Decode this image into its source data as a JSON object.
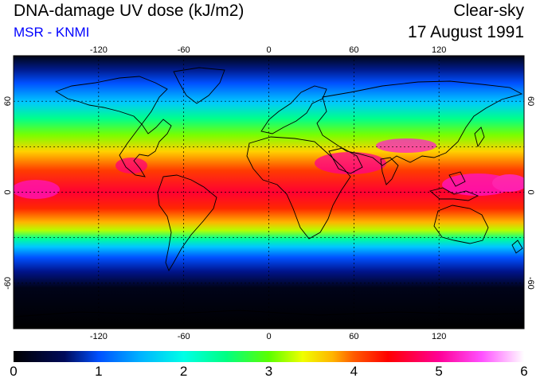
{
  "header": {
    "title": "DNA-damage UV dose (kJ/m2)",
    "subtitle": "MSR - KNMI",
    "sky": "Clear-sky",
    "date": "17 August 1991"
  },
  "colors": {
    "title": "#000000",
    "subtitle": "#0000ff"
  },
  "map": {
    "projection": "equirectangular",
    "lon_range": [
      -180,
      180
    ],
    "lat_range": [
      -90,
      90
    ],
    "grid": true,
    "grid_style": "dashed",
    "lon_ticks": [
      -120,
      -60,
      0,
      60,
      120
    ],
    "lat_ticks": [
      -60,
      0,
      60
    ],
    "lon_tick_labels": [
      "-120",
      "-60",
      "0",
      "60",
      "120"
    ],
    "lat_tick_labels": [
      "-60",
      "0",
      "60"
    ],
    "coastlines": true
  },
  "colorbar": {
    "min": 0,
    "max": 6,
    "labels": [
      "0",
      "1",
      "2",
      "3",
      "4",
      "5",
      "6"
    ],
    "stops": [
      {
        "value": 0.0,
        "color": "#000000"
      },
      {
        "value": 0.6,
        "color": "#000a5a"
      },
      {
        "value": 1.0,
        "color": "#0050ff"
      },
      {
        "value": 1.5,
        "color": "#00b4ff"
      },
      {
        "value": 2.0,
        "color": "#00ffe6"
      },
      {
        "value": 2.5,
        "color": "#00ff82"
      },
      {
        "value": 3.0,
        "color": "#5aff00"
      },
      {
        "value": 3.4,
        "color": "#f0ff00"
      },
      {
        "value": 3.75,
        "color": "#ffb400"
      },
      {
        "value": 4.0,
        "color": "#ff5a00"
      },
      {
        "value": 4.4,
        "color": "#ff0000"
      },
      {
        "value": 5.0,
        "color": "#ff0096"
      },
      {
        "value": 5.5,
        "color": "#ff50ff"
      },
      {
        "value": 6.0,
        "color": "#ffffff"
      }
    ]
  }
}
